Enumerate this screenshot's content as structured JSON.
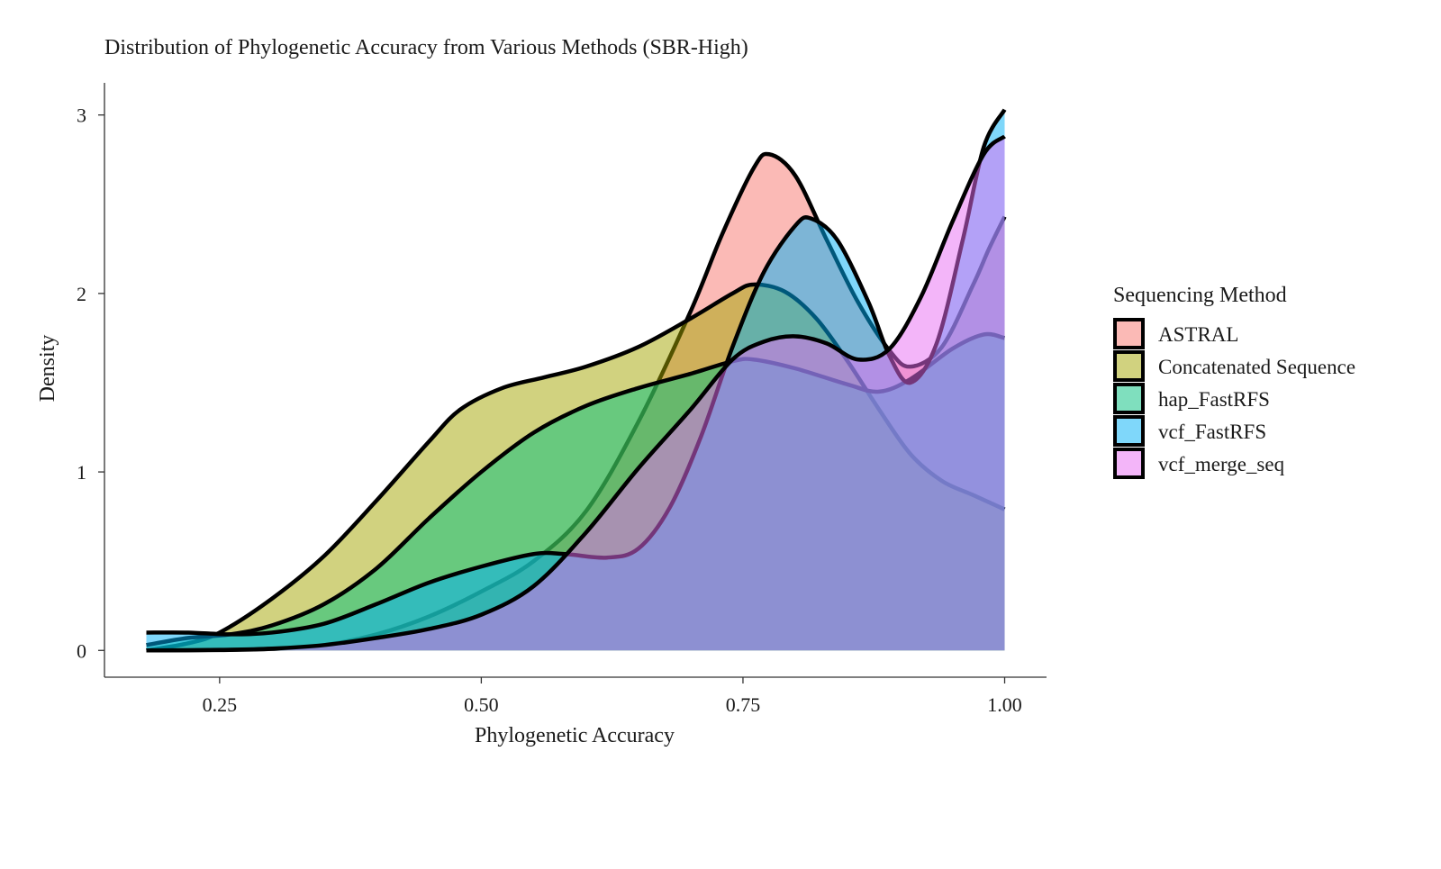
{
  "chart_data": {
    "type": "area",
    "title": "Distribution of Phylogenetic Accuracy from Various Methods (SBR-High)",
    "xlabel": "Phylogenetic Accuracy",
    "ylabel": "Density",
    "xlim": [
      0.14,
      1.04
    ],
    "ylim": [
      -0.15,
      3.18
    ],
    "x_ticks": [
      0.25,
      0.5,
      0.75,
      1.0
    ],
    "x_tick_labels": [
      "0.25",
      "0.50",
      "0.75",
      "1.00"
    ],
    "y_ticks": [
      0,
      1,
      2,
      3
    ],
    "y_tick_labels": [
      "0",
      "1",
      "2",
      "3"
    ],
    "grid": false,
    "legend": {
      "title": "Sequencing Method",
      "placement": "right"
    },
    "series": [
      {
        "name": "ASTRAL",
        "color": "#F8766D",
        "points": [
          [
            0.18,
            0.0
          ],
          [
            0.25,
            0.002
          ],
          [
            0.3,
            0.008
          ],
          [
            0.35,
            0.03
          ],
          [
            0.4,
            0.09
          ],
          [
            0.45,
            0.19
          ],
          [
            0.5,
            0.33
          ],
          [
            0.55,
            0.5
          ],
          [
            0.6,
            0.78
          ],
          [
            0.65,
            1.28
          ],
          [
            0.7,
            1.9
          ],
          [
            0.73,
            2.33
          ],
          [
            0.76,
            2.7
          ],
          [
            0.775,
            2.78
          ],
          [
            0.8,
            2.66
          ],
          [
            0.83,
            2.3
          ],
          [
            0.86,
            1.95
          ],
          [
            0.89,
            1.68
          ],
          [
            0.91,
            1.59
          ],
          [
            0.94,
            1.7
          ],
          [
            0.97,
            2.05
          ],
          [
            0.985,
            2.25
          ],
          [
            1.0,
            2.43
          ]
        ]
      },
      {
        "name": "Concatenated Sequence",
        "color": "#A3A500",
        "points": [
          [
            0.18,
            0.0
          ],
          [
            0.22,
            0.04
          ],
          [
            0.25,
            0.1
          ],
          [
            0.3,
            0.29
          ],
          [
            0.35,
            0.53
          ],
          [
            0.4,
            0.84
          ],
          [
            0.45,
            1.17
          ],
          [
            0.48,
            1.35
          ],
          [
            0.52,
            1.47
          ],
          [
            0.56,
            1.53
          ],
          [
            0.6,
            1.59
          ],
          [
            0.65,
            1.7
          ],
          [
            0.7,
            1.86
          ],
          [
            0.74,
            2.0
          ],
          [
            0.76,
            2.05
          ],
          [
            0.79,
            2.01
          ],
          [
            0.82,
            1.86
          ],
          [
            0.85,
            1.62
          ],
          [
            0.88,
            1.35
          ],
          [
            0.91,
            1.1
          ],
          [
            0.94,
            0.95
          ],
          [
            0.97,
            0.87
          ],
          [
            1.0,
            0.79
          ]
        ]
      },
      {
        "name": "hap_FastRFS",
        "color": "#00BF7D",
        "points": [
          [
            0.18,
            0.03
          ],
          [
            0.22,
            0.07
          ],
          [
            0.26,
            0.09
          ],
          [
            0.3,
            0.14
          ],
          [
            0.35,
            0.26
          ],
          [
            0.4,
            0.46
          ],
          [
            0.45,
            0.74
          ],
          [
            0.5,
            1.0
          ],
          [
            0.55,
            1.22
          ],
          [
            0.6,
            1.37
          ],
          [
            0.65,
            1.47
          ],
          [
            0.7,
            1.55
          ],
          [
            0.74,
            1.62
          ],
          [
            0.76,
            1.63
          ],
          [
            0.8,
            1.58
          ],
          [
            0.85,
            1.49
          ],
          [
            0.88,
            1.45
          ],
          [
            0.91,
            1.52
          ],
          [
            0.95,
            1.69
          ],
          [
            0.98,
            1.77
          ],
          [
            1.0,
            1.75
          ]
        ]
      },
      {
        "name": "vcf_FastRFS",
        "color": "#00B0F6",
        "points": [
          [
            0.18,
            0.1
          ],
          [
            0.22,
            0.1
          ],
          [
            0.26,
            0.09
          ],
          [
            0.3,
            0.1
          ],
          [
            0.35,
            0.15
          ],
          [
            0.4,
            0.26
          ],
          [
            0.45,
            0.38
          ],
          [
            0.5,
            0.47
          ],
          [
            0.55,
            0.54
          ],
          [
            0.58,
            0.54
          ],
          [
            0.62,
            0.52
          ],
          [
            0.65,
            0.57
          ],
          [
            0.68,
            0.8
          ],
          [
            0.71,
            1.2
          ],
          [
            0.74,
            1.7
          ],
          [
            0.77,
            2.12
          ],
          [
            0.8,
            2.38
          ],
          [
            0.815,
            2.42
          ],
          [
            0.84,
            2.3
          ],
          [
            0.87,
            1.95
          ],
          [
            0.89,
            1.65
          ],
          [
            0.91,
            1.5
          ],
          [
            0.935,
            1.72
          ],
          [
            0.96,
            2.3
          ],
          [
            0.98,
            2.82
          ],
          [
            1.0,
            3.03
          ]
        ]
      },
      {
        "name": "vcf_merge_seq",
        "color": "#E76BF3",
        "points": [
          [
            0.18,
            0.0
          ],
          [
            0.25,
            0.003
          ],
          [
            0.3,
            0.01
          ],
          [
            0.35,
            0.03
          ],
          [
            0.4,
            0.07
          ],
          [
            0.45,
            0.12
          ],
          [
            0.5,
            0.2
          ],
          [
            0.55,
            0.36
          ],
          [
            0.6,
            0.66
          ],
          [
            0.65,
            1.02
          ],
          [
            0.7,
            1.35
          ],
          [
            0.74,
            1.63
          ],
          [
            0.77,
            1.73
          ],
          [
            0.8,
            1.76
          ],
          [
            0.83,
            1.72
          ],
          [
            0.86,
            1.63
          ],
          [
            0.89,
            1.69
          ],
          [
            0.92,
            1.98
          ],
          [
            0.95,
            2.4
          ],
          [
            0.98,
            2.78
          ],
          [
            1.0,
            2.88
          ]
        ]
      }
    ]
  }
}
